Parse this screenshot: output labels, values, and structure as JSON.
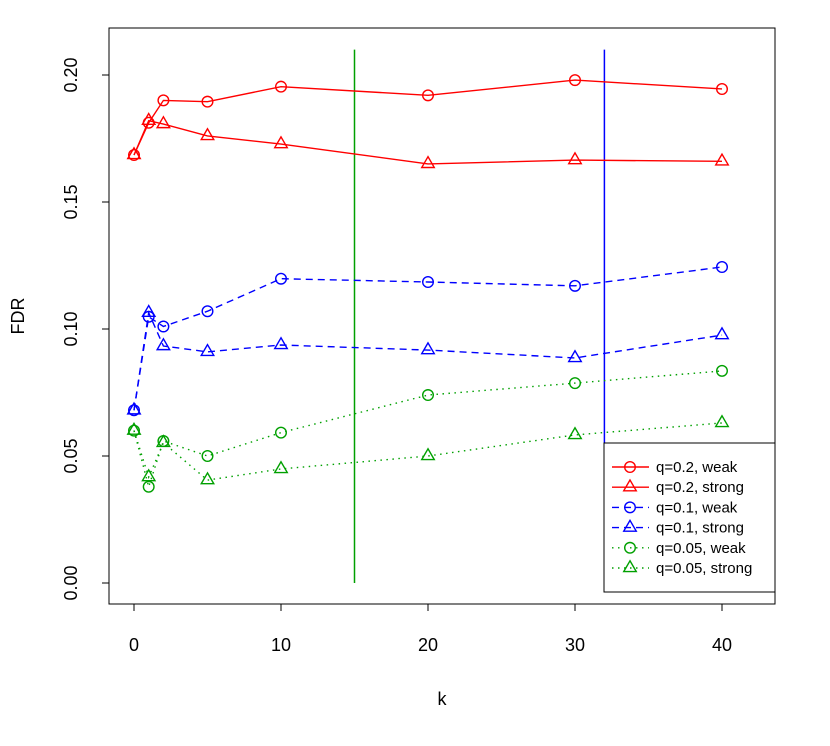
{
  "chart_data": {
    "type": "line",
    "title": "",
    "xlabel": "k",
    "ylabel": "FDR",
    "xlim": [
      -1.7,
      43.5
    ],
    "ylim": [
      -0.0083,
      0.2185
    ],
    "xticks": [
      0,
      10,
      20,
      30,
      40
    ],
    "yticks": [
      0.0,
      0.05,
      0.1,
      0.15,
      0.2
    ],
    "xtick_labels": [
      "0",
      "10",
      "20",
      "30",
      "40"
    ],
    "ytick_labels": [
      "0.00",
      "0.05",
      "0.10",
      "0.15",
      "0.20"
    ],
    "grid": false,
    "legend_position": "bottom-right",
    "x": [
      0,
      1,
      2,
      5,
      10,
      20,
      30,
      40
    ],
    "series": [
      {
        "name": "q=0.2, weak",
        "color": "#ff0000",
        "line": "solid",
        "marker": "circle",
        "values": [
          0.1685,
          0.1812,
          0.19,
          0.1895,
          0.1954,
          0.192,
          0.198,
          0.1945
        ]
      },
      {
        "name": "q=0.2, strong",
        "color": "#ff0000",
        "line": "solid",
        "marker": "triangle",
        "values": [
          0.1685,
          0.182,
          0.1807,
          0.176,
          0.1728,
          0.165,
          0.1665,
          0.166
        ]
      },
      {
        "name": "q=0.1, weak",
        "color": "#0000ff",
        "line": "dashed",
        "marker": "circle",
        "values": [
          0.068,
          0.1048,
          0.101,
          0.107,
          0.1198,
          0.1185,
          0.117,
          0.1244
        ]
      },
      {
        "name": "q=0.1, strong",
        "color": "#0000ff",
        "line": "dashed",
        "marker": "triangle",
        "values": [
          0.068,
          0.1064,
          0.0933,
          0.091,
          0.0937,
          0.0917,
          0.0886,
          0.0976
        ]
      },
      {
        "name": "q=0.05, weak",
        "color": "#00a000",
        "line": "dotted",
        "marker": "circle",
        "values": [
          0.06,
          0.0379,
          0.0559,
          0.05,
          0.0592,
          0.074,
          0.0787,
          0.0835
        ]
      },
      {
        "name": "q=0.05, strong",
        "color": "#00a000",
        "line": "dotted",
        "marker": "triangle",
        "values": [
          0.06,
          0.0417,
          0.0552,
          0.0405,
          0.0449,
          0.05,
          0.0583,
          0.063
        ]
      }
    ],
    "vertical_lines": [
      {
        "x": 15,
        "y_range": [
          0,
          0.21
        ],
        "color": "#00a000"
      },
      {
        "x": 32,
        "y_range": [
          0,
          0.21
        ],
        "color": "#0000ff"
      }
    ]
  }
}
